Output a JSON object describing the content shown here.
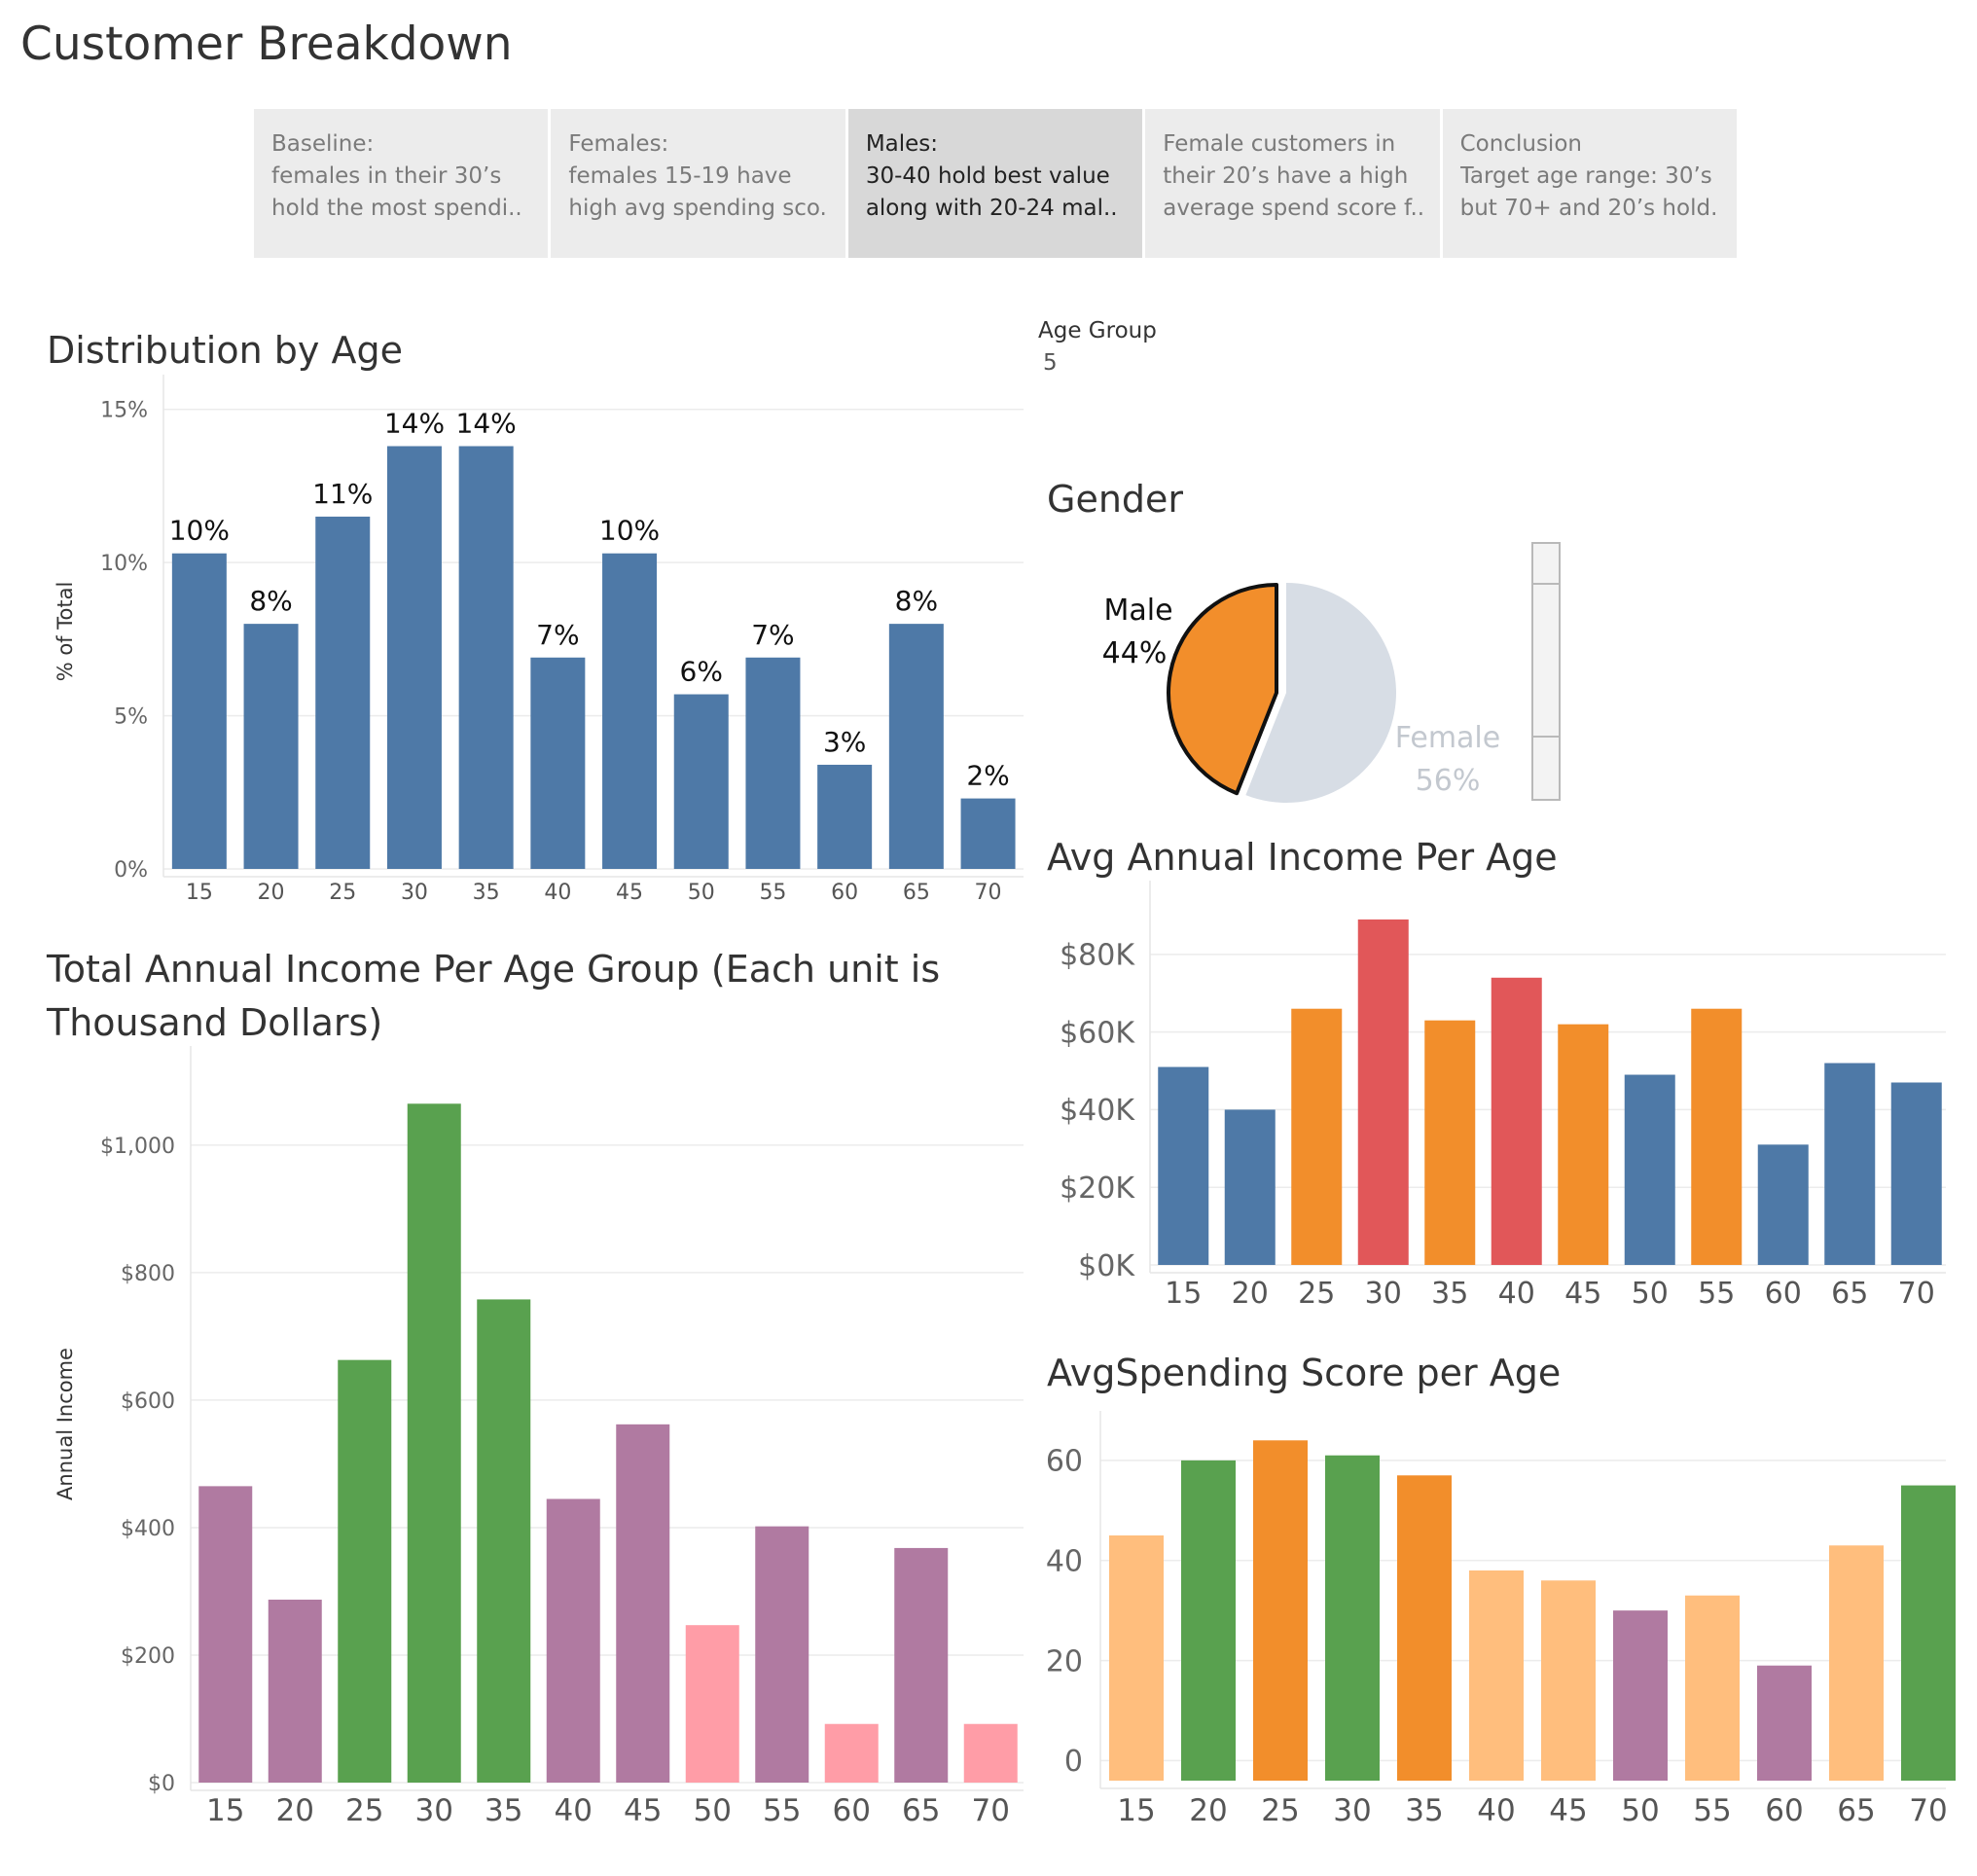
{
  "dashboard": {
    "title": "Customer Breakdown",
    "story_points": [
      {
        "lines": [
          "Baseline:",
          "females in their 30’s",
          "hold the most spendi.."
        ],
        "active": false
      },
      {
        "lines": [
          "Females:",
          "females 15-19 have",
          "high avg spending sco.."
        ],
        "active": false
      },
      {
        "lines": [
          "Males:",
          "30-40 hold best value",
          "along with 20-24 mal.."
        ],
        "active": true
      },
      {
        "lines": [
          "Female customers in",
          "their 20’s have a high",
          "average spend score f.."
        ],
        "active": false
      },
      {
        "lines": [
          "Conclusion",
          "Target age range: 30’s",
          "but 70+ and 20’s hold.."
        ],
        "active": false
      }
    ],
    "parameter": {
      "label": "Age Group",
      "value": "5"
    }
  },
  "colors": {
    "blue": "#4e79a7",
    "orange": "#f28e2b",
    "red": "#e15759",
    "green": "#59a14f",
    "purple": "#b07aa1",
    "pink": "#ff9da7",
    "light_orange": "#ffbe7d",
    "pie_female": "#d7dde5",
    "pie_female_label": "#c3c8cf"
  },
  "chart_data": [
    {
      "id": "distribution",
      "type": "bar",
      "title": "Distribution by Age",
      "xlabel": "",
      "ylabel": "% of Total",
      "categories": [
        "15",
        "20",
        "25",
        "30",
        "35",
        "40",
        "45",
        "50",
        "55",
        "60",
        "65",
        "70"
      ],
      "values": [
        10.3,
        8.0,
        11.5,
        13.8,
        13.8,
        6.9,
        10.3,
        5.7,
        6.9,
        3.4,
        8.0,
        2.3
      ],
      "data_labels": [
        "10%",
        "8%",
        "11%",
        "14%",
        "14%",
        "7%",
        "10%",
        "6%",
        "7%",
        "3%",
        "8%",
        "2%"
      ],
      "yticks": [
        "0%",
        "5%",
        "10%",
        "15%"
      ],
      "ytick_values": [
        0,
        5,
        10,
        15
      ],
      "ylim": [
        0,
        15.5
      ],
      "colors": [
        "blue",
        "blue",
        "blue",
        "blue",
        "blue",
        "blue",
        "blue",
        "blue",
        "blue",
        "blue",
        "blue",
        "blue"
      ],
      "grid": true
    },
    {
      "id": "gender",
      "type": "pie",
      "title": "Gender",
      "slices": [
        {
          "name": "Male",
          "label": "44%",
          "value": 44,
          "color": "orange"
        },
        {
          "name": "Female",
          "label": "56%",
          "value": 56,
          "color": "pie_female"
        }
      ]
    },
    {
      "id": "avg_income",
      "type": "bar",
      "title": "Avg Annual Income Per Age",
      "xlabel": "",
      "ylabel": "",
      "categories": [
        "15",
        "20",
        "25",
        "30",
        "35",
        "40",
        "45",
        "50",
        "55",
        "60",
        "65",
        "70"
      ],
      "values": [
        51,
        40,
        66,
        89,
        63,
        74,
        62,
        49,
        66,
        31,
        52,
        47
      ],
      "yticks": [
        "$0K",
        "$20K",
        "$40K",
        "$60K",
        "$80K"
      ],
      "ytick_values": [
        0,
        20,
        40,
        60,
        80
      ],
      "ylim": [
        0,
        94
      ],
      "colors": [
        "blue",
        "blue",
        "orange",
        "red",
        "orange",
        "red",
        "orange",
        "blue",
        "orange",
        "blue",
        "blue",
        "blue"
      ],
      "grid": true
    },
    {
      "id": "total_income",
      "type": "bar",
      "title_lines": [
        "Total Annual Income Per Age Group (Each unit is",
        "Thousand Dollars)"
      ],
      "xlabel": "",
      "ylabel": "Annual Income",
      "categories": [
        "15",
        "20",
        "25",
        "30",
        "35",
        "40",
        "45",
        "50",
        "55",
        "60",
        "65",
        "70"
      ],
      "values": [
        465,
        287,
        663,
        1065,
        758,
        445,
        562,
        247,
        402,
        92,
        368,
        92
      ],
      "yticks": [
        "$0",
        "$200",
        "$400",
        "$600",
        "$800",
        "$1,000"
      ],
      "ytick_values": [
        0,
        200,
        400,
        600,
        800,
        1000
      ],
      "ylim": [
        0,
        1125
      ],
      "colors": [
        "purple",
        "purple",
        "green",
        "green",
        "green",
        "purple",
        "purple",
        "pink",
        "purple",
        "pink",
        "purple",
        "pink"
      ],
      "grid": true
    },
    {
      "id": "avg_spending",
      "type": "bar",
      "title": "AvgSpending Score per Age",
      "xlabel": "",
      "ylabel": "",
      "categories": [
        "15",
        "20",
        "25",
        "30",
        "35",
        "40",
        "45",
        "50",
        "55",
        "60",
        "65",
        "70"
      ],
      "values": [
        45,
        60,
        64,
        61,
        57,
        38,
        36,
        30,
        33,
        19,
        43,
        55
      ],
      "yticks": [
        "0",
        "20",
        "40",
        "60"
      ],
      "ytick_values": [
        0,
        20,
        40,
        60
      ],
      "ylim": [
        -4,
        66
      ],
      "colors": [
        "light_orange",
        "green",
        "orange",
        "green",
        "orange",
        "light_orange",
        "light_orange",
        "purple",
        "light_orange",
        "purple",
        "light_orange",
        "green"
      ],
      "grid": true
    }
  ]
}
